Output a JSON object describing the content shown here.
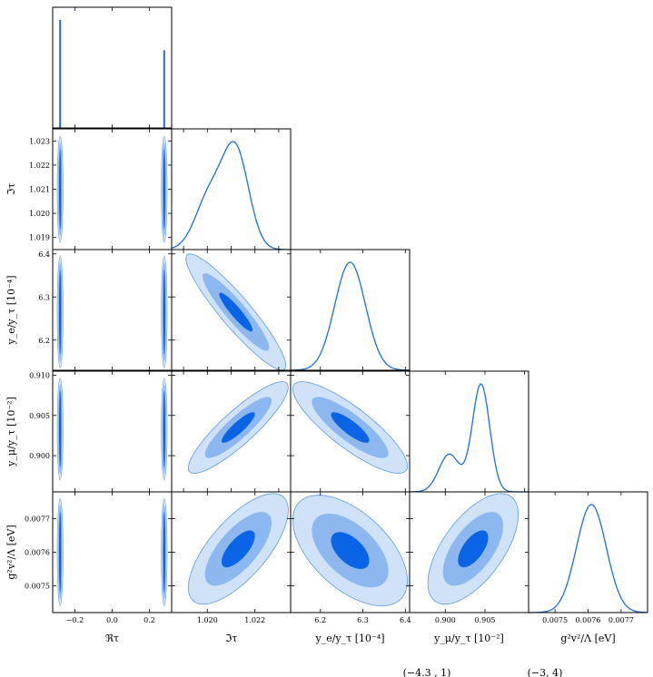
{
  "chart_data": {
    "type": "corner",
    "colors": {
      "line": "#1f6fd6",
      "c1": "#0b63e6",
      "c2": "#8cb8ef",
      "c3": "#cfe2f8",
      "edge": "#5b9ae6"
    },
    "parameters": [
      {
        "label": "ℜτ",
        "range": [
          -0.32,
          0.32
        ],
        "ticks": [
          -0.2,
          0.0,
          0.2
        ],
        "tick_labels": [
          "−0.2",
          "0.0",
          "0.2"
        ]
      },
      {
        "label": "ℑτ",
        "range": [
          1.0185,
          1.0235
        ],
        "ticks": [
          1.019,
          1.02,
          1.021,
          1.022,
          1.023
        ],
        "tick_labels": [
          "1.019",
          "1.020",
          "1.021",
          "1.022",
          "1.023"
        ],
        "bottom_ticks": [
          1.02,
          1.022
        ]
      },
      {
        "label": "y_e/y_τ [10⁻⁴]",
        "range": [
          6.13,
          6.41
        ],
        "ticks": [
          6.2,
          6.3,
          6.4
        ],
        "tick_labels": [
          "6.2",
          "6.3",
          "6.4"
        ]
      },
      {
        "label": "y_μ/y_τ [10⁻²]",
        "range": [
          0.8955,
          0.9105
        ],
        "ticks": [
          0.9,
          0.905,
          0.91
        ],
        "tick_labels": [
          "0.900",
          "0.905",
          "0.910"
        ],
        "bottom_ticks": [
          0.9,
          0.905
        ]
      },
      {
        "label": "g²v²/Λ [eV]",
        "range": [
          0.00742,
          0.00778
        ],
        "ticks": [
          0.0075,
          0.0076,
          0.0077
        ],
        "tick_labels": [
          "0.0075",
          "0.0076",
          "0.0077"
        ]
      }
    ],
    "marginals": [
      {
        "type": "two-spikes",
        "peaks": [
          {
            "x": -0.28,
            "h": 1.0
          },
          {
            "x": 0.28,
            "h": 0.72
          }
        ]
      },
      {
        "type": "mixture",
        "components": [
          {
            "mu": 1.0212,
            "sigma": 0.00055,
            "w": 1.0
          },
          {
            "mu": 1.0201,
            "sigma": 0.0006,
            "w": 0.55
          }
        ]
      },
      {
        "type": "mixture",
        "components": [
          {
            "mu": 6.27,
            "sigma": 0.036,
            "w": 1.0
          }
        ]
      },
      {
        "type": "mixture",
        "components": [
          {
            "mu": 0.9045,
            "sigma": 0.0011,
            "w": 1.0
          },
          {
            "mu": 0.9005,
            "sigma": 0.0013,
            "w": 0.35
          }
        ]
      },
      {
        "type": "mixture",
        "components": [
          {
            "mu": 0.00761,
            "sigma": 4.5e-05,
            "w": 1.0
          }
        ]
      }
    ],
    "joint_2d": [
      {
        "x": 1,
        "y": 2,
        "center": [
          1.0212,
          6.265
        ],
        "sigmas": [
          0.0007,
          0.045
        ],
        "rho": -0.92
      },
      {
        "x": 1,
        "y": 3,
        "center": [
          1.0213,
          0.9035
        ],
        "sigmas": [
          0.0007,
          0.0019
        ],
        "rho": 0.88
      },
      {
        "x": 2,
        "y": 3,
        "center": [
          6.27,
          0.9035
        ],
        "sigmas": [
          0.045,
          0.0019
        ],
        "rho": -0.84
      },
      {
        "x": 1,
        "y": 4,
        "center": [
          1.0213,
          0.00761
        ],
        "sigmas": [
          0.0007,
          5.5e-05
        ],
        "rho": 0.7
      },
      {
        "x": 2,
        "y": 4,
        "center": [
          6.27,
          0.007605
        ],
        "sigmas": [
          0.045,
          5.5e-05
        ],
        "rho": -0.55
      },
      {
        "x": 3,
        "y": 4,
        "center": [
          0.9035,
          0.00761
        ],
        "sigmas": [
          0.0019,
          5.5e-05
        ],
        "rho": 0.62
      }
    ],
    "joint_re_tau": [
      {
        "y": 1,
        "center_y": 1.021,
        "half_height": 0.0022
      },
      {
        "y": 2,
        "center_y": 6.265,
        "half_height": 0.13
      },
      {
        "y": 3,
        "center_y": 0.9033,
        "half_height": 0.0063
      },
      {
        "y": 4,
        "center_y": 0.0076,
        "half_height": 0.00016
      }
    ],
    "spike_positions": [
      -0.28,
      0.28
    ],
    "contour_levels": [
      1.0,
      2.0,
      3.0
    ],
    "footer_text": [
      "(−4.3 , 1)",
      "(−3, 4)"
    ]
  }
}
